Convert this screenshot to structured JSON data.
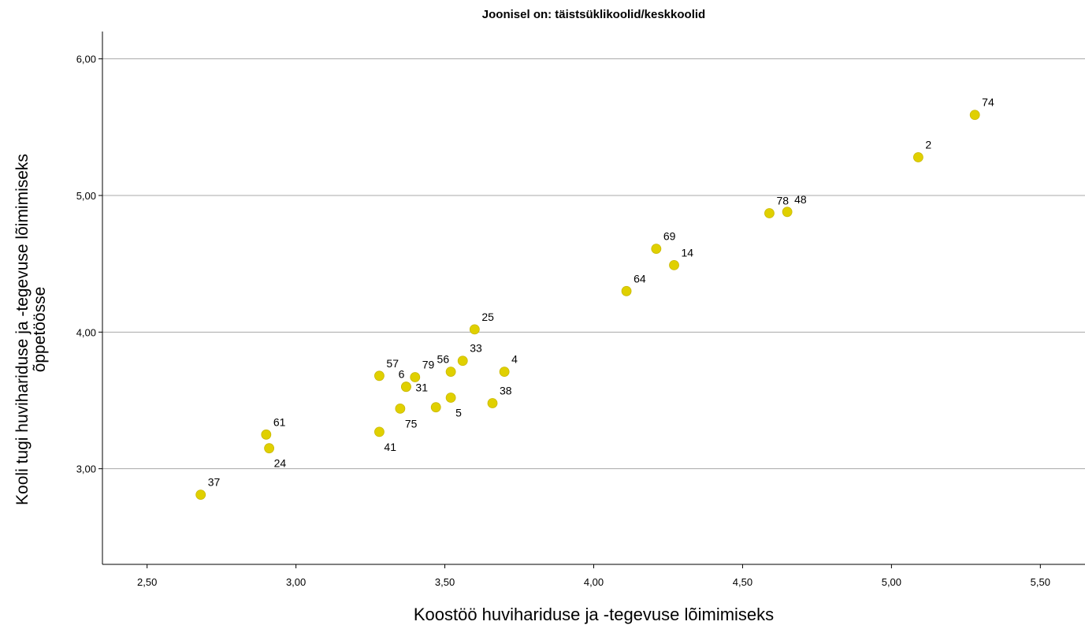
{
  "chart_data": {
    "type": "scatter",
    "title": "Joonisel on: täistsüklikoolid/keskkoolid",
    "xlabel": "Koostöö huvihariduse ja -tegevuse lõimimiseks",
    "ylabel_lines": [
      "Kooli tugi huvihariduse ja -tegevuse lõimimiseks",
      "õppetöösse"
    ],
    "xlim": [
      2.35,
      5.65
    ],
    "ylim": [
      2.3,
      6.2
    ],
    "x_ticks": [
      2.5,
      3.0,
      3.5,
      4.0,
      4.5,
      5.0,
      5.5
    ],
    "x_tick_labels": [
      "2,50",
      "3,00",
      "3,50",
      "4,00",
      "4,50",
      "5,00",
      "5,50"
    ],
    "y_ticks": [
      3.0,
      4.0,
      5.0,
      6.0
    ],
    "y_tick_labels": [
      "3,00",
      "4,00",
      "5,00",
      "6,00"
    ],
    "grid": "horizontal",
    "marker_color": "#e0d000",
    "points": [
      {
        "label": "74",
        "x": 5.28,
        "y": 5.59,
        "pos": "ur"
      },
      {
        "label": "2",
        "x": 5.09,
        "y": 5.28,
        "pos": "ur"
      },
      {
        "label": "78",
        "x": 4.59,
        "y": 4.87,
        "pos": "ur"
      },
      {
        "label": "48",
        "x": 4.65,
        "y": 4.88,
        "pos": "ur"
      },
      {
        "label": "69",
        "x": 4.21,
        "y": 4.61,
        "pos": "ur"
      },
      {
        "label": "14",
        "x": 4.27,
        "y": 4.49,
        "pos": "ur"
      },
      {
        "label": "64",
        "x": 4.11,
        "y": 4.3,
        "pos": "ur"
      },
      {
        "label": "25",
        "x": 3.6,
        "y": 4.02,
        "pos": "ur"
      },
      {
        "label": "33",
        "x": 3.56,
        "y": 3.79,
        "pos": "ur"
      },
      {
        "label": "56",
        "x": 3.52,
        "y": 3.71,
        "pos": "ul"
      },
      {
        "label": "4",
        "x": 3.7,
        "y": 3.71,
        "pos": "ur"
      },
      {
        "label": "79",
        "x": 3.4,
        "y": 3.67,
        "pos": "ur"
      },
      {
        "label": "57",
        "x": 3.28,
        "y": 3.68,
        "pos": "ur"
      },
      {
        "label": "6",
        "x": 3.37,
        "y": 3.6,
        "pos": "ul"
      },
      {
        "label": "31",
        "x": 3.37,
        "y": 3.6,
        "pos": "r"
      },
      {
        "label": "38",
        "x": 3.66,
        "y": 3.48,
        "pos": "ur"
      },
      {
        "label": "5",
        "x": 3.52,
        "y": 3.52,
        "pos": "lr"
      },
      {
        "label": "",
        "x": 3.47,
        "y": 3.45,
        "pos": "none"
      },
      {
        "label": "75",
        "x": 3.35,
        "y": 3.44,
        "pos": "lr"
      },
      {
        "label": "41",
        "x": 3.28,
        "y": 3.27,
        "pos": "lr"
      },
      {
        "label": "61",
        "x": 2.9,
        "y": 3.25,
        "pos": "ur"
      },
      {
        "label": "24",
        "x": 2.91,
        "y": 3.15,
        "pos": "lr"
      },
      {
        "label": "37",
        "x": 2.68,
        "y": 2.81,
        "pos": "ur"
      }
    ]
  }
}
